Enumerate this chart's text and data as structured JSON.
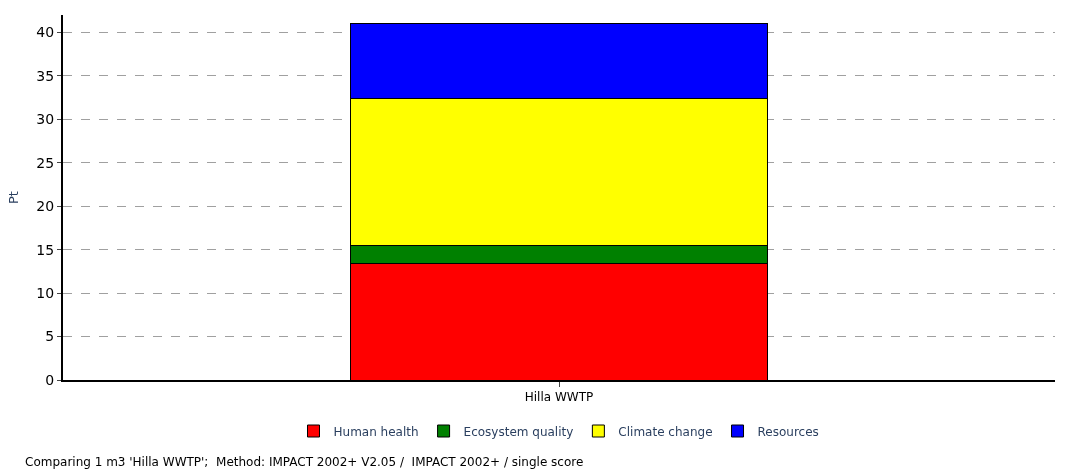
{
  "chart_data": {
    "type": "bar",
    "stacked": true,
    "ylabel": "Pt",
    "categories": [
      "Hilla WWTP"
    ],
    "series": [
      {
        "name": "Human health",
        "color": "#ff0000",
        "values": [
          13.4
        ]
      },
      {
        "name": "Ecosystem quality",
        "color": "#008000",
        "values": [
          2.1
        ]
      },
      {
        "name": "Climate change",
        "color": "#ffff00",
        "values": [
          16.9
        ]
      },
      {
        "name": "Resources",
        "color": "#0000ff",
        "values": [
          8.6
        ]
      }
    ],
    "ylim": [
      0,
      42
    ],
    "yticks": [
      0,
      5,
      10,
      15,
      20,
      25,
      30,
      35,
      40
    ],
    "grid": "y",
    "legend": "bottom",
    "annotations": [
      "Comparing 1 m3 'Hilla WWTP';  Method: IMPACT 2002+ V2.05 /  IMPACT 2002+ / single score"
    ]
  }
}
